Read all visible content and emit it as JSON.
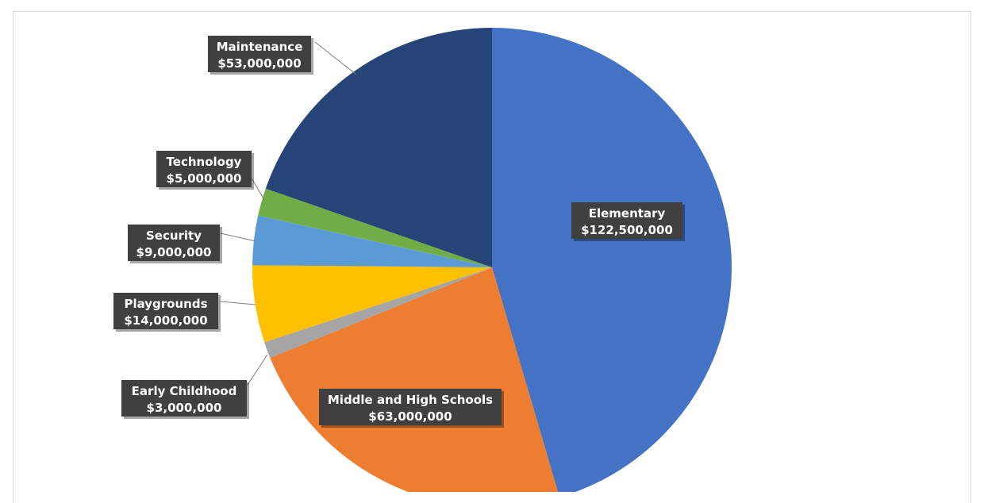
{
  "chart_data": {
    "type": "pie",
    "title": "",
    "slices": [
      {
        "label": "Elementary",
        "value_label": "$122,500,000",
        "value": 122500000,
        "color": "#4472C4"
      },
      {
        "label": "Middle and High Schools",
        "value_label": "$63,000,000",
        "value": 63000000,
        "color": "#ED7D31"
      },
      {
        "label": "Early Childhood",
        "value_label": "$3,000,000",
        "value": 3000000,
        "color": "#A5A5A5"
      },
      {
        "label": "Playgrounds",
        "value_label": "$14,000,000",
        "value": 14000000,
        "color": "#FFC000"
      },
      {
        "label": "Security",
        "value_label": "$9,000,000",
        "value": 9000000,
        "color": "#5B9BD5"
      },
      {
        "label": "Technology",
        "value_label": "$5,000,000",
        "value": 5000000,
        "color": "#70AD47"
      },
      {
        "label": "Maintenance",
        "value_label": "$53,000,000",
        "value": 53000000,
        "color": "#264478"
      }
    ],
    "legend": "none",
    "data_labels": "callouts with leader lines"
  }
}
